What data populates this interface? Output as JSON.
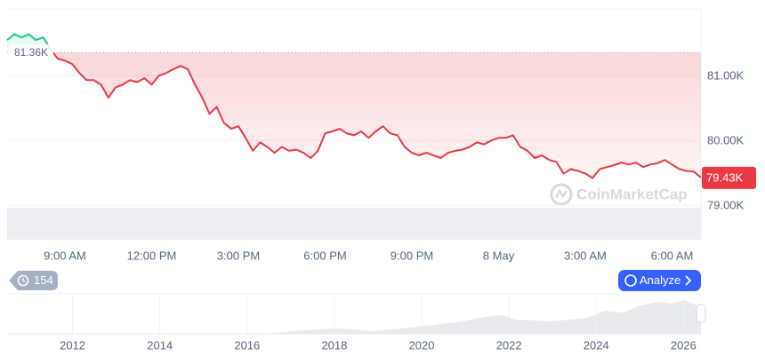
{
  "chart_data": {
    "type": "line",
    "categories": [
      null,
      null,
      null,
      null,
      null,
      null,
      null,
      null,
      "9:00 AM",
      null,
      null,
      null,
      null,
      null,
      null,
      null,
      null,
      null,
      null,
      null,
      "12:00 PM",
      null,
      null,
      null,
      null,
      null,
      null,
      null,
      null,
      null,
      null,
      null,
      "3:00 PM",
      null,
      null,
      null,
      null,
      null,
      null,
      null,
      null,
      null,
      null,
      null,
      "6:00 PM",
      null,
      null,
      null,
      null,
      null,
      null,
      null,
      null,
      null,
      null,
      null,
      "9:00 PM",
      null,
      null,
      null,
      null,
      null,
      null,
      null,
      null,
      null,
      null,
      null,
      "8 May",
      null,
      null,
      null,
      null,
      null,
      null,
      null,
      null,
      null,
      null,
      null,
      "3:00 AM",
      null,
      null,
      null,
      null,
      null,
      null,
      null,
      null,
      null,
      null,
      null,
      "6:00 AM",
      null,
      null,
      null,
      null
    ],
    "values": [
      81550,
      81640,
      81590,
      81640,
      81550,
      81590,
      81410,
      81260,
      81230,
      81180,
      81040,
      80930,
      80930,
      80860,
      80660,
      80820,
      80860,
      80930,
      80900,
      80960,
      80860,
      81000,
      81040,
      81100,
      81150,
      81100,
      80860,
      80660,
      80410,
      80520,
      80270,
      80180,
      80220,
      80040,
      79840,
      79970,
      79900,
      79810,
      79900,
      79840,
      79860,
      79810,
      79730,
      79840,
      80110,
      80140,
      80180,
      80110,
      80080,
      80140,
      80040,
      80140,
      80220,
      80110,
      80080,
      79900,
      79810,
      79770,
      79810,
      79770,
      79730,
      79810,
      79840,
      79860,
      79900,
      79970,
      79940,
      80000,
      80040,
      80040,
      80080,
      79900,
      79840,
      79730,
      79770,
      79700,
      79670,
      79490,
      79560,
      79530,
      79490,
      79420,
      79560,
      79590,
      79620,
      79660,
      79630,
      79660,
      79590,
      79630,
      79650,
      79700,
      79630,
      79560,
      79530,
      79520,
      79430
    ],
    "color": "#ea3943",
    "color_above": "#16c784",
    "ylim": [
      78990,
      82030
    ],
    "yticks": [
      {
        "value": 79000,
        "label": "79.00K"
      },
      {
        "value": 80000,
        "label": "80.00K"
      },
      {
        "value": 81000,
        "label": "81.00K"
      }
    ],
    "grid": true,
    "reference": {
      "value": 81360,
      "label": "81.36K"
    },
    "current": {
      "value": 79430,
      "label": "79.43K"
    },
    "navigator": {
      "xlim": [
        2010.5,
        2026.4
      ],
      "xticks": [
        2012,
        2014,
        2016,
        2018,
        2020,
        2022,
        2024,
        2026
      ]
    }
  },
  "ui": {
    "badge": "154",
    "analyze_button": "Analyze",
    "watermark": "CoinMarketCap"
  }
}
